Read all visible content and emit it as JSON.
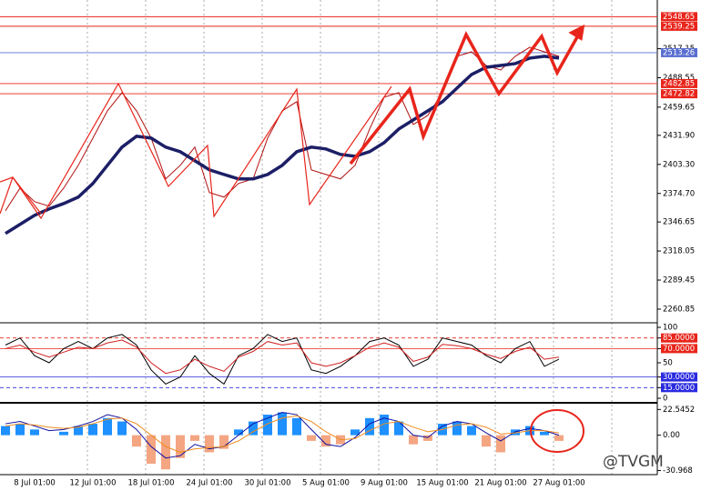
{
  "chart_data": [
    {
      "type": "line",
      "ylim": [
        2250.1,
        2563.3
      ],
      "yticks": [
        {
          "value": 2260.85,
          "label": "2260.85"
        },
        2289.45,
        2318.05,
        2346.65,
        {
          "value": 2374.7,
          "label": "2374.70"
        },
        {
          "value": 2403.3,
          "label": "2403.30"
        },
        {
          "value": 2431.9,
          "label": "2431.90"
        },
        2459.65,
        2488.55,
        2517.15
      ],
      "levels": [
        {
          "value": 2548.65,
          "color": "#e8251b"
        },
        {
          "value": 2539.25,
          "color": "#e8251b"
        },
        {
          "value": 2482.85,
          "color": "#e8251b"
        },
        {
          "value": 2472.82,
          "color": "#e8251b"
        },
        {
          "value": 2513.26,
          "color": "#5b6fd0"
        }
      ],
      "series": [
        {
          "color": "#b01010",
          "values": [
            2357.7,
            2380.0,
            2366.6,
            2362.2,
            2380.0,
            2402.4,
            2429.2,
            2456.0,
            2473.9,
            2456.0,
            2429.2,
            2389.0,
            2402.4,
            2420.3,
            2375.6,
            2371.1,
            2384.5,
            2389.0,
            2429.2,
            2456.0,
            2465.0,
            2397.9,
            2393.4,
            2389.0,
            2402.4,
            2438.1,
            2469.4,
            2473.9,
            2442.6,
            2451.6,
            2473.9,
            2509.7,
            2514.1,
            2500.7,
            2496.2,
            2509.7,
            2518.6,
            2514.1,
            2509.7
          ]
        },
        {
          "color": "#1c1f66",
          "values": [
            2335.3,
            2344.3,
            2353.2,
            2359.5,
            2364.8,
            2371.1,
            2384.5,
            2402.4,
            2420.3,
            2431.0,
            2429.2,
            2420.3,
            2415.8,
            2406.9,
            2397.9,
            2393.4,
            2389.0,
            2389.0,
            2393.4,
            2402.4,
            2415.8,
            2420.3,
            2418.5,
            2413.1,
            2411.3,
            2415.8,
            2424.7,
            2438.1,
            2447.1,
            2456.0,
            2465.0,
            2478.4,
            2491.8,
            2498.9,
            2500.7,
            2502.5,
            2507.9,
            2509.7,
            2507.9
          ]
        }
      ]
    },
    {
      "type": "line",
      "ylim": [
        0,
        100
      ],
      "yticks": [
        0,
        {
          "value": 15,
          "label": "15.0000",
          "color": "#2a2ae0"
        },
        {
          "value": 30,
          "label": "30.0000",
          "color": "#2a2ae0"
        },
        50,
        {
          "value": 70,
          "label": "70.0000",
          "color": "#e8251b"
        },
        {
          "value": 85,
          "label": "85.0000",
          "color": "#e8251b"
        },
        100
      ],
      "series": [
        {
          "color": "#000000",
          "values": [
            75,
            85,
            60,
            50,
            70,
            80,
            70,
            85,
            90,
            75,
            40,
            20,
            30,
            60,
            35,
            20,
            60,
            70,
            90,
            80,
            85,
            40,
            35,
            45,
            60,
            80,
            85,
            75,
            45,
            55,
            85,
            80,
            75,
            60,
            50,
            70,
            80,
            45,
            55
          ]
        },
        {
          "color": "#d02020",
          "values": [
            70,
            75,
            65,
            58,
            65,
            72,
            70,
            78,
            82,
            72,
            50,
            35,
            40,
            55,
            45,
            38,
            58,
            66,
            80,
            75,
            78,
            50,
            45,
            50,
            60,
            72,
            78,
            72,
            52,
            58,
            76,
            74,
            70,
            62,
            56,
            66,
            72,
            55,
            58
          ]
        }
      ]
    },
    {
      "type": "bar",
      "ylim": [
        -33.8,
        26.0
      ],
      "yticks": [
        -30.968,
        {
          "value": 0,
          "label": "0.00"
        },
        22.5452
      ],
      "categories": [
        null,
        null,
        "8 Jul 01:00",
        null,
        null,
        null,
        "12 Jul 01:00",
        null,
        null,
        null,
        "18 Jul 01:00",
        null,
        null,
        null,
        "24 Jul 01:00",
        null,
        null,
        null,
        "30 Jul 01:00",
        null,
        null,
        null,
        "5 Aug 01:00",
        null,
        null,
        null,
        "9 Aug 01:00",
        null,
        null,
        null,
        "15 Aug 01:00",
        null,
        null,
        null,
        "21 Aug 01:00",
        null,
        null,
        null,
        "27 Aug 01:00"
      ],
      "values": [
        8,
        10,
        5,
        0,
        3,
        8,
        10,
        15,
        12,
        -10,
        -25,
        -30,
        -20,
        -5,
        -15,
        -12,
        5,
        12,
        18,
        20,
        15,
        -5,
        -10,
        -8,
        5,
        15,
        18,
        12,
        -8,
        -5,
        10,
        12,
        8,
        -10,
        -15,
        5,
        8,
        3,
        -5
      ],
      "colors": {
        "positive": "#1e90ff",
        "negative": "#f4a582"
      },
      "series": [
        {
          "color": "#1010a0",
          "values": [
            10,
            12,
            8,
            4,
            5,
            8,
            12,
            18,
            15,
            5,
            -10,
            -20,
            -18,
            -8,
            -12,
            -10,
            0,
            10,
            15,
            20,
            18,
            5,
            -8,
            -10,
            -2,
            10,
            15,
            12,
            0,
            -2,
            8,
            12,
            10,
            2,
            -5,
            3,
            6,
            4,
            0
          ]
        },
        {
          "color": "#f08c1e",
          "values": [
            8,
            10,
            9,
            7,
            6,
            7,
            10,
            14,
            15,
            10,
            0,
            -10,
            -15,
            -12,
            -11,
            -10,
            -5,
            3,
            10,
            15,
            17,
            12,
            3,
            -4,
            -3,
            4,
            10,
            12,
            7,
            3,
            5,
            9,
            10,
            7,
            1,
            2,
            4,
            4,
            2
          ]
        }
      ]
    }
  ],
  "watermark": "@TVGM"
}
